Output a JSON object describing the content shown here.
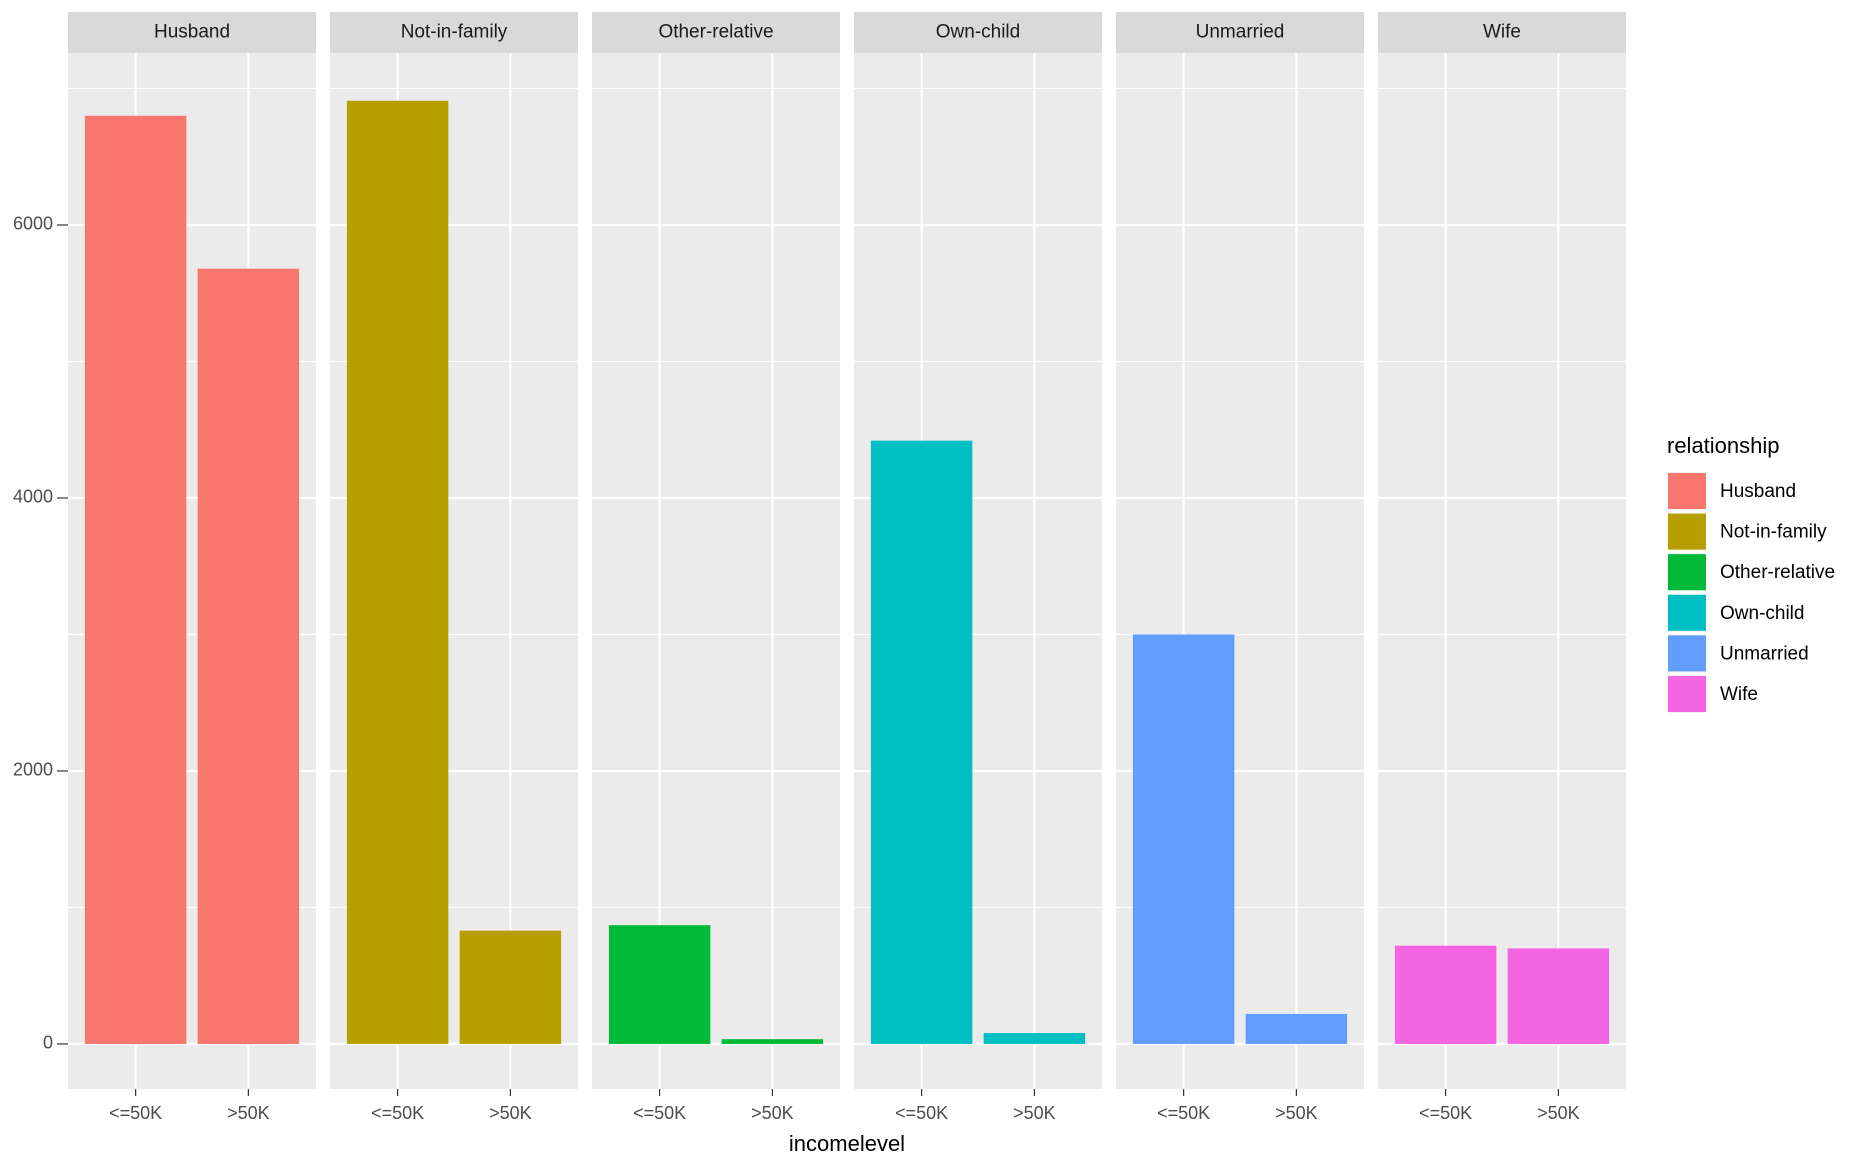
{
  "chart_data": {
    "type": "bar",
    "x_label": "incomelevel",
    "legend_title": "relationship",
    "categories": [
      "<=50K",
      ">50K"
    ],
    "series": [
      {
        "name": "Husband",
        "color": "#f8766d",
        "values": [
          6800,
          5680
        ]
      },
      {
        "name": "Not-in-family",
        "color": "#b79f00",
        "values": [
          6910,
          830
        ]
      },
      {
        "name": "Other-relative",
        "color": "#00ba38",
        "values": [
          870,
          35
        ]
      },
      {
        "name": "Own-child",
        "color": "#00bfc4",
        "values": [
          4420,
          80
        ]
      },
      {
        "name": "Unmarried",
        "color": "#619cff",
        "values": [
          3000,
          220
        ]
      },
      {
        "name": "Wife",
        "color": "#f564e3",
        "values": [
          720,
          700
        ]
      }
    ],
    "ylim": [
      -330,
      7260
    ],
    "yticks": [
      0,
      2000,
      4000,
      6000
    ],
    "y_minor_ticks": [
      1000,
      3000,
      5000,
      7000
    ],
    "grid": true,
    "legend": "right"
  }
}
